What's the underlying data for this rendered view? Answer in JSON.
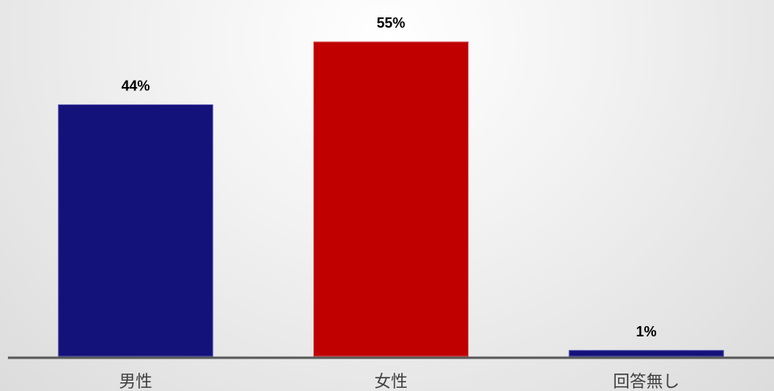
{
  "chart_data": {
    "type": "bar",
    "title": "",
    "xlabel": "",
    "ylabel": "",
    "categories": [
      "男性",
      "女性",
      "回答無し"
    ],
    "values": [
      44,
      55,
      1
    ],
    "value_labels": [
      "44%",
      "55%",
      "1%"
    ],
    "bar_colors": [
      "#13117a",
      "#c00000",
      "#13117a"
    ],
    "ylim": [
      0,
      55
    ],
    "grid": false,
    "legend": "none"
  }
}
